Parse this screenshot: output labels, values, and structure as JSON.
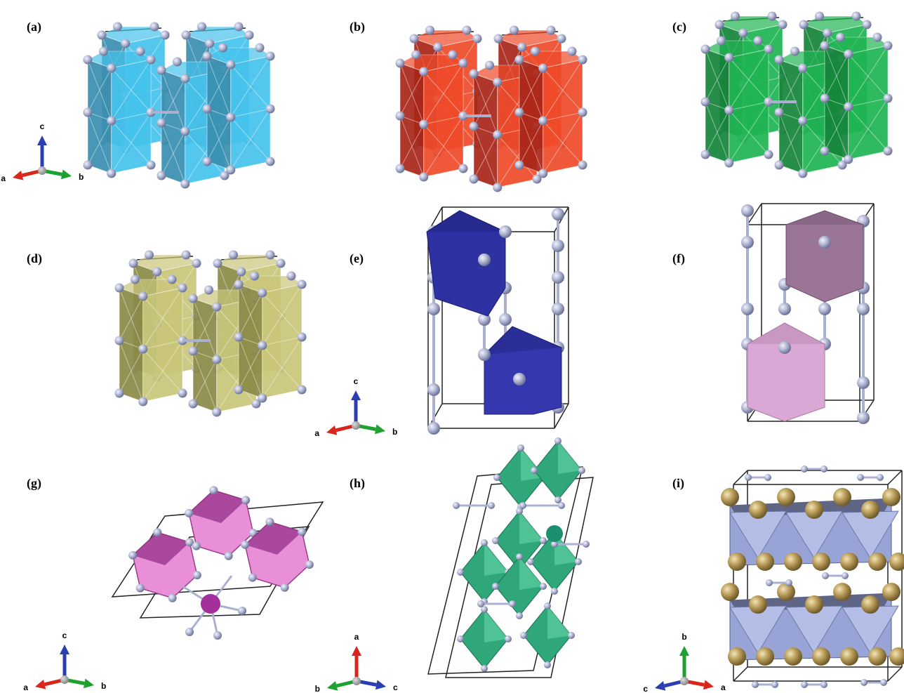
{
  "panels": [
    {
      "label": "(a)",
      "axes": {
        "up": "c",
        "left": "a",
        "right": "b"
      }
    },
    {
      "label": "(b)"
    },
    {
      "label": "(c)"
    },
    {
      "label": "(d)"
    },
    {
      "label": "(e)",
      "axes": {
        "up": "c",
        "left": "a",
        "right": "b"
      }
    },
    {
      "label": "(f)"
    },
    {
      "label": "(g)",
      "axes": {
        "up": "c",
        "left": "a",
        "right": "b"
      }
    },
    {
      "label": "(h)",
      "axes": {
        "up": "a",
        "left": "b",
        "right": "c"
      }
    },
    {
      "label": "(i)",
      "axes": {
        "up": "b",
        "left": "c",
        "right": "a"
      }
    }
  ]
}
